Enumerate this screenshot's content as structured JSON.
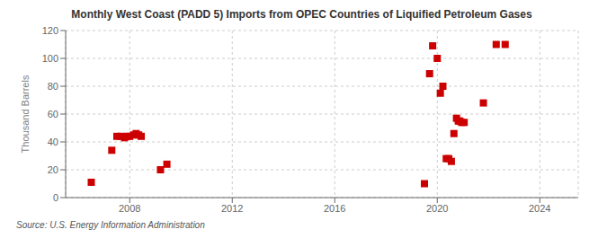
{
  "chart_data": {
    "type": "scatter",
    "title": "Monthly West Coast (PADD 5) Imports from OPEC Countries of Liquified Petroleum Gases",
    "y_label": "Thousand Barrels",
    "annotations": [
      "Source: U.S. Energy Information Administration"
    ],
    "x": [
      2006.5,
      2007.3,
      2007.5,
      2007.65,
      2007.8,
      2007.9,
      2008.0,
      2008.15,
      2008.25,
      2008.35,
      2008.45,
      2009.2,
      2009.45,
      2019.5,
      2019.7,
      2019.82,
      2020.0,
      2020.12,
      2020.22,
      2020.35,
      2020.45,
      2020.55,
      2020.65,
      2020.75,
      2020.82,
      2020.88,
      2020.95,
      2021.05,
      2021.8,
      2022.3,
      2022.65
    ],
    "values": [
      11,
      34,
      44,
      44,
      43,
      44,
      44,
      45,
      46,
      45,
      44,
      20,
      24,
      10,
      89,
      109,
      100,
      75,
      80,
      28,
      28,
      26,
      46,
      57,
      55,
      55,
      54,
      54,
      68,
      110,
      110
    ],
    "color": "#cc0000",
    "marker": "square",
    "xlim": [
      2005.5,
      2025.5
    ],
    "xticks": [
      2008,
      2012,
      2016,
      2020,
      2024
    ],
    "ylim": [
      0,
      120
    ],
    "yticks": [
      0,
      20,
      40,
      60,
      80,
      100,
      120
    ],
    "grid": true
  }
}
